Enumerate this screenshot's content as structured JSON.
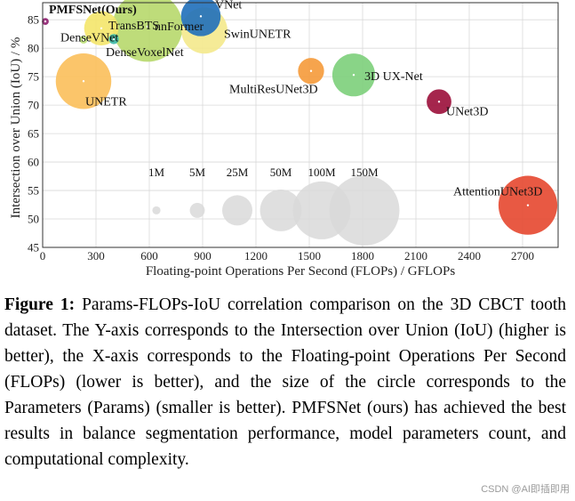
{
  "chart_data": {
    "type": "scatter",
    "title": "",
    "xlabel": "Floating-point Operations Per Second (FLOPs) / GFLOPs",
    "ylabel": "Intersection over Union (IoU) / %",
    "xlim": [
      0,
      2900
    ],
    "ylim": [
      45,
      88
    ],
    "xticks": [
      0,
      300,
      600,
      900,
      1200,
      1500,
      1800,
      2100,
      2400,
      2700
    ],
    "yticks": [
      45,
      50,
      55,
      60,
      65,
      70,
      75,
      80,
      85
    ],
    "grid": true,
    "points": [
      {
        "name": "PMFSNet(Ours)",
        "flops": 15,
        "iou": 84.7,
        "params_m": 0.6,
        "color": "#8e1e6f",
        "bold": true
      },
      {
        "name": "TransBTS",
        "flops": 330,
        "iou": 83.5,
        "params_m": 33,
        "color": "#f4e66a",
        "bold": false
      },
      {
        "name": "DenseVNet",
        "flops": 230,
        "iou": 81.5,
        "params_m": 0.9,
        "color": "#bfe27a",
        "bold": false
      },
      {
        "name": "DenseVoxelNet",
        "flops": 400,
        "iou": 81.6,
        "params_m": 1.8,
        "color": "#3ab7a6",
        "bold": false
      },
      {
        "name": "nnFormer",
        "flops": 590,
        "iou": 83.8,
        "params_m": 150,
        "color": "#b7d86b",
        "bold": false
      },
      {
        "name": "VNet",
        "flops": 890,
        "iou": 85.6,
        "params_m": 45,
        "color": "#1f6fba",
        "bold": false
      },
      {
        "name": "SwinUNETR",
        "flops": 910,
        "iou": 83.1,
        "params_m": 62,
        "color": "#f4e98c",
        "bold": false
      },
      {
        "name": "UNETR",
        "flops": 230,
        "iou": 74.2,
        "params_m": 92,
        "color": "#fbbf5a",
        "bold": false
      },
      {
        "name": "MultiResUNet3D",
        "flops": 1510,
        "iou": 76.0,
        "params_m": 18,
        "color": "#f59a3a",
        "bold": false
      },
      {
        "name": "3D UX-Net",
        "flops": 1750,
        "iou": 75.3,
        "params_m": 53,
        "color": "#7ccf7a",
        "bold": false
      },
      {
        "name": "UNet3D",
        "flops": 2230,
        "iou": 70.6,
        "params_m": 16,
        "color": "#9b0e3a",
        "bold": false
      },
      {
        "name": "AttentionUNet3D",
        "flops": 2730,
        "iou": 52.4,
        "params_m": 104,
        "color": "#e5472f",
        "bold": false
      }
    ],
    "size_legend": [
      {
        "label": "1M",
        "params_m": 1,
        "flops": 640
      },
      {
        "label": "5M",
        "params_m": 5,
        "flops": 870
      },
      {
        "label": "25M",
        "params_m": 25,
        "flops": 1095
      },
      {
        "label": "50M",
        "params_m": 50,
        "flops": 1340
      },
      {
        "label": "100M",
        "params_m": 100,
        "flops": 1570
      },
      {
        "label": "150M",
        "params_m": 150,
        "flops": 1810
      }
    ],
    "size_legend_iou": 51.5,
    "size_legend_label_iou": 58.3
  },
  "caption": {
    "label": "Figure 1:",
    "text": "Params-FLOPs-IoU correlation comparison on the 3D CBCT tooth dataset. The Y-axis corresponds to the Intersection over Union (IoU) (higher is better), the X-axis corresponds to the Floating-point Operations Per Second (FLOPs) (lower is better), and the size of the circle corresponds to the Parameters (Params) (smaller is better). PMFSNet (ours) has achieved the best results in balance segmentation performance, model parameters count, and computational complexity."
  },
  "watermark": "CSDN @AI即插即用"
}
